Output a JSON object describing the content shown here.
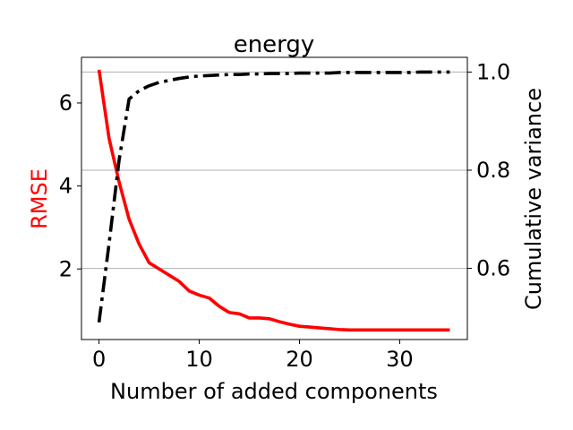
{
  "chart_data": {
    "type": "line",
    "title": "energy",
    "xlabel": "Number of added components",
    "ylabel_left": "RMSE",
    "ylabel_right": "Cumulative variance",
    "colors": {
      "rmse": "#ff0000",
      "variance": "#000000",
      "grid": "#b0b0b0"
    },
    "xlim": [
      -1.75,
      36.75
    ],
    "ylim_left": [
      0.3,
      7.1
    ],
    "ylim_right": [
      0.455,
      1.03
    ],
    "xticks": [
      0,
      10,
      20,
      30
    ],
    "xtick_labels": [
      "0",
      "10",
      "20",
      "30"
    ],
    "yticks_left": [
      2,
      4,
      6
    ],
    "ytick_labels_left": [
      "2",
      "4",
      "6"
    ],
    "yticks_right": [
      0.6,
      0.8,
      1.0
    ],
    "ytick_labels_right": [
      "0.6",
      "0.8",
      "1.0"
    ],
    "grid": "right-axis horizontal",
    "series": [
      {
        "axis": "left",
        "style": "solid",
        "x": [
          0,
          1,
          2,
          3,
          4,
          5,
          6,
          7,
          8,
          9,
          10,
          11,
          12,
          13,
          14,
          15,
          16,
          17,
          18,
          19,
          20,
          21,
          22,
          23,
          24,
          25,
          26,
          27,
          28,
          29,
          30,
          31,
          32,
          33,
          34,
          35
        ],
        "values": [
          6.8,
          5.15,
          4.1,
          3.2,
          2.6,
          2.15,
          2.0,
          1.85,
          1.7,
          1.47,
          1.37,
          1.3,
          1.1,
          0.95,
          0.92,
          0.82,
          0.82,
          0.8,
          0.73,
          0.67,
          0.62,
          0.6,
          0.58,
          0.56,
          0.54,
          0.53,
          0.53,
          0.53,
          0.53,
          0.53,
          0.53,
          0.53,
          0.53,
          0.53,
          0.53,
          0.53
        ]
      },
      {
        "axis": "right",
        "style": "dash-dot",
        "x": [
          0,
          1,
          2,
          3,
          4,
          5,
          6,
          7,
          8,
          9,
          10,
          11,
          12,
          13,
          14,
          15,
          16,
          17,
          18,
          19,
          20,
          21,
          22,
          23,
          24,
          25,
          26,
          27,
          28,
          29,
          30,
          31,
          32,
          33,
          34,
          35
        ],
        "values": [
          0.49,
          0.65,
          0.82,
          0.945,
          0.962,
          0.972,
          0.979,
          0.983,
          0.987,
          0.99,
          0.992,
          0.993,
          0.994,
          0.995,
          0.995,
          0.996,
          0.996,
          0.997,
          0.997,
          0.997,
          0.998,
          0.998,
          0.998,
          0.998,
          0.999,
          0.999,
          0.999,
          0.999,
          0.999,
          0.999,
          0.999,
          0.999,
          1.0,
          1.0,
          1.0,
          1.0
        ]
      }
    ]
  }
}
